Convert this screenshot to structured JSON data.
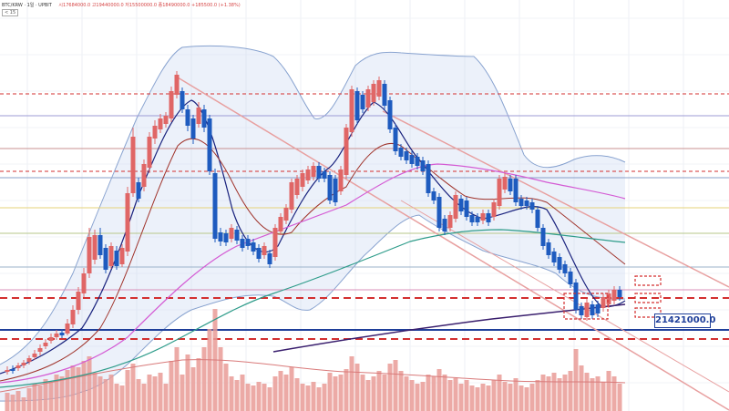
{
  "header": {
    "symbol": "BTC/KRW · 1일 · UPBIT",
    "ohlc": "시17684000.0  고19440000.0  저15500000.0  종18490000.0  +185500.0 (+1.38%)",
    "tag": "< 15"
  },
  "price_label": "21421000.0",
  "colors": {
    "up": "#e06666",
    "down": "#1e5bbf",
    "band": "#c9d8f0",
    "ma_fast": "#1a237e",
    "ma_mid": "#a0342c",
    "ma_pink": "#d45bd4",
    "ma_teal": "#2e9c8a",
    "ma_long": "#3a1f6e",
    "red_dash": "#d32f2f",
    "solid_blue": "#1f3f9a"
  },
  "chart_data": {
    "type": "candlestick",
    "candles": [
      [
        8,
        406,
        408,
        402,
        411
      ],
      [
        14,
        405,
        407,
        401,
        410
      ],
      [
        20,
        401,
        404,
        398,
        407
      ],
      [
        26,
        398,
        401,
        395,
        404
      ],
      [
        32,
        393,
        397,
        390,
        400
      ],
      [
        38,
        388,
        392,
        384,
        395
      ],
      [
        44,
        382,
        386,
        378,
        390
      ],
      [
        50,
        376,
        380,
        372,
        383
      ],
      [
        56,
        370,
        374,
        366,
        377
      ],
      [
        62,
        366,
        370,
        362,
        373
      ],
      [
        68,
        365,
        368,
        361,
        371
      ],
      [
        74,
        355,
        366,
        350,
        368
      ],
      [
        80,
        340,
        356,
        335,
        360
      ],
      [
        86,
        320,
        340,
        315,
        345
      ],
      [
        92,
        300,
        322,
        294,
        326
      ],
      [
        98,
        260,
        300,
        250,
        305
      ],
      [
        104,
        258,
        285,
        252,
        290
      ],
      [
        110,
        258,
        280,
        250,
        284
      ],
      [
        116,
        272,
        296,
        268,
        300
      ],
      [
        122,
        270,
        292,
        266,
        295
      ],
      [
        128,
        275,
        292,
        270,
        296
      ],
      [
        134,
        272,
        290,
        268,
        293
      ],
      [
        140,
        212,
        276,
        205,
        281
      ],
      [
        146,
        150,
        212,
        140,
        216
      ],
      [
        152,
        200,
        218,
        195,
        222
      ],
      [
        158,
        180,
        205,
        175,
        210
      ],
      [
        164,
        150,
        184,
        145,
        190
      ],
      [
        170,
        138,
        152,
        132,
        158
      ],
      [
        176,
        130,
        142,
        125,
        146
      ],
      [
        182,
        127,
        136,
        123,
        140
      ],
      [
        188,
        100,
        130,
        95,
        134
      ],
      [
        194,
        82,
        104,
        78,
        108
      ],
      [
        200,
        100,
        120,
        96,
        124
      ],
      [
        206,
        120,
        138,
        115,
        144
      ],
      [
        212,
        130,
        152,
        126,
        158
      ],
      [
        218,
        118,
        136,
        112,
        140
      ],
      [
        224,
        120,
        140,
        115,
        145
      ],
      [
        230,
        130,
        188,
        126,
        192
      ],
      [
        236,
        190,
        262,
        185,
        266
      ],
      [
        242,
        255,
        265,
        250,
        270
      ],
      [
        248,
        256,
        266,
        252,
        270
      ],
      [
        254,
        250,
        262,
        246,
        266
      ],
      [
        260,
        252,
        264,
        248,
        268
      ],
      [
        266,
        262,
        272,
        258,
        276
      ],
      [
        272,
        262,
        270,
        258,
        274
      ],
      [
        278,
        266,
        276,
        262,
        280
      ],
      [
        284,
        272,
        284,
        268,
        288
      ],
      [
        290,
        270,
        280,
        266,
        284
      ],
      [
        296,
        278,
        290,
        274,
        294
      ],
      [
        302,
        250,
        282,
        246,
        286
      ],
      [
        308,
        238,
        254,
        234,
        258
      ],
      [
        314,
        228,
        242,
        224,
        246
      ],
      [
        320,
        200,
        230,
        196,
        234
      ],
      [
        326,
        196,
        214,
        192,
        218
      ],
      [
        332,
        190,
        205,
        186,
        210
      ],
      [
        338,
        186,
        198,
        182,
        202
      ],
      [
        344,
        182,
        194,
        178,
        198
      ],
      [
        350,
        182,
        196,
        178,
        200
      ],
      [
        356,
        188,
        196,
        184,
        200
      ],
      [
        362,
        192,
        220,
        188,
        224
      ],
      [
        368,
        196,
        222,
        192,
        226
      ],
      [
        374,
        186,
        210,
        182,
        214
      ],
      [
        380,
        140,
        192,
        136,
        196
      ],
      [
        386,
        98,
        145,
        94,
        150
      ],
      [
        392,
        100,
        132,
        96,
        136
      ],
      [
        398,
        104,
        120,
        100,
        124
      ],
      [
        404,
        98,
        118,
        94,
        122
      ],
      [
        410,
        92,
        112,
        88,
        116
      ],
      [
        416,
        88,
        106,
        84,
        110
      ],
      [
        422,
        92,
        116,
        88,
        120
      ],
      [
        428,
        110,
        142,
        106,
        146
      ],
      [
        434,
        140,
        166,
        136,
        170
      ],
      [
        440,
        162,
        172,
        158,
        176
      ],
      [
        446,
        166,
        176,
        162,
        180
      ],
      [
        452,
        170,
        180,
        166,
        184
      ],
      [
        458,
        172,
        182,
        168,
        186
      ],
      [
        464,
        176,
        188,
        172,
        192
      ],
      [
        470,
        180,
        212,
        176,
        216
      ],
      [
        476,
        210,
        220,
        206,
        224
      ],
      [
        482,
        216,
        250,
        212,
        254
      ],
      [
        488,
        240,
        254,
        236,
        258
      ],
      [
        494,
        236,
        250,
        232,
        254
      ],
      [
        500,
        214,
        240,
        210,
        244
      ],
      [
        506,
        218,
        232,
        214,
        236
      ],
      [
        512,
        220,
        238,
        216,
        242
      ],
      [
        518,
        236,
        244,
        232,
        248
      ],
      [
        524,
        238,
        244,
        234,
        248
      ],
      [
        530,
        234,
        242,
        230,
        246
      ],
      [
        536,
        234,
        244,
        230,
        248
      ],
      [
        542,
        222,
        238,
        218,
        242
      ],
      [
        548,
        196,
        226,
        192,
        230
      ],
      [
        554,
        194,
        208,
        190,
        212
      ],
      [
        560,
        196,
        210,
        192,
        214
      ],
      [
        566,
        196,
        222,
        192,
        226
      ],
      [
        572,
        218,
        226,
        214,
        230
      ],
      [
        578,
        220,
        226,
        216,
        230
      ],
      [
        584,
        222,
        230,
        218,
        234
      ],
      [
        590,
        230,
        250,
        226,
        254
      ],
      [
        596,
        250,
        270,
        246,
        274
      ],
      [
        602,
        266,
        280,
        262,
        284
      ],
      [
        608,
        276,
        288,
        272,
        292
      ],
      [
        614,
        282,
        296,
        278,
        300
      ],
      [
        620,
        290,
        300,
        286,
        304
      ],
      [
        626,
        298,
        312,
        294,
        316
      ],
      [
        632,
        310,
        340,
        306,
        344
      ],
      [
        638,
        336,
        346,
        332,
        350
      ],
      [
        644,
        332,
        348,
        328,
        352
      ],
      [
        650,
        334,
        346,
        330,
        350
      ],
      [
        656,
        334,
        344,
        330,
        348
      ],
      [
        662,
        326,
        338,
        322,
        342
      ],
      [
        668,
        322,
        334,
        318,
        338
      ],
      [
        674,
        318,
        330,
        314,
        334
      ],
      [
        680,
        318,
        326,
        314,
        330
      ]
    ],
    "volume": [
      [
        8,
        20
      ],
      [
        14,
        18
      ],
      [
        20,
        22
      ],
      [
        26,
        15
      ],
      [
        32,
        25
      ],
      [
        38,
        30
      ],
      [
        44,
        28
      ],
      [
        50,
        35
      ],
      [
        56,
        32
      ],
      [
        62,
        40
      ],
      [
        68,
        38
      ],
      [
        74,
        45
      ],
      [
        80,
        50
      ],
      [
        86,
        48
      ],
      [
        92,
        55
      ],
      [
        98,
        60
      ],
      [
        104,
        42
      ],
      [
        110,
        38
      ],
      [
        116,
        35
      ],
      [
        122,
        40
      ],
      [
        128,
        30
      ],
      [
        134,
        28
      ],
      [
        140,
        45
      ],
      [
        146,
        52
      ],
      [
        152,
        35
      ],
      [
        158,
        30
      ],
      [
        164,
        40
      ],
      [
        170,
        38
      ],
      [
        176,
        42
      ],
      [
        182,
        30
      ],
      [
        188,
        55
      ],
      [
        194,
        70
      ],
      [
        200,
        40
      ],
      [
        206,
        62
      ],
      [
        212,
        48
      ],
      [
        218,
        58
      ],
      [
        224,
        70
      ],
      [
        230,
        90
      ],
      [
        236,
        112
      ],
      [
        242,
        70
      ],
      [
        248,
        52
      ],
      [
        254,
        38
      ],
      [
        260,
        34
      ],
      [
        266,
        40
      ],
      [
        272,
        30
      ],
      [
        278,
        28
      ],
      [
        284,
        32
      ],
      [
        290,
        30
      ],
      [
        296,
        26
      ],
      [
        302,
        38
      ],
      [
        308,
        44
      ],
      [
        314,
        40
      ],
      [
        320,
        48
      ],
      [
        326,
        36
      ],
      [
        332,
        30
      ],
      [
        338,
        28
      ],
      [
        344,
        32
      ],
      [
        350,
        26
      ],
      [
        356,
        30
      ],
      [
        362,
        42
      ],
      [
        368,
        38
      ],
      [
        374,
        40
      ],
      [
        380,
        46
      ],
      [
        386,
        60
      ],
      [
        392,
        52
      ],
      [
        398,
        40
      ],
      [
        404,
        34
      ],
      [
        410,
        38
      ],
      [
        416,
        44
      ],
      [
        422,
        40
      ],
      [
        428,
        52
      ],
      [
        434,
        56
      ],
      [
        440,
        44
      ],
      [
        446,
        38
      ],
      [
        452,
        34
      ],
      [
        458,
        30
      ],
      [
        464,
        32
      ],
      [
        470,
        40
      ],
      [
        476,
        38
      ],
      [
        482,
        46
      ],
      [
        488,
        40
      ],
      [
        494,
        34
      ],
      [
        500,
        36
      ],
      [
        506,
        30
      ],
      [
        512,
        34
      ],
      [
        518,
        28
      ],
      [
        524,
        26
      ],
      [
        530,
        30
      ],
      [
        536,
        28
      ],
      [
        542,
        34
      ],
      [
        548,
        40
      ],
      [
        554,
        32
      ],
      [
        560,
        30
      ],
      [
        566,
        36
      ],
      [
        572,
        28
      ],
      [
        578,
        26
      ],
      [
        584,
        30
      ],
      [
        590,
        34
      ],
      [
        596,
        40
      ],
      [
        602,
        38
      ],
      [
        608,
        42
      ],
      [
        614,
        36
      ],
      [
        620,
        40
      ],
      [
        626,
        44
      ],
      [
        632,
        68
      ],
      [
        638,
        50
      ],
      [
        644,
        42
      ],
      [
        650,
        36
      ],
      [
        656,
        38
      ],
      [
        662,
        32
      ],
      [
        668,
        44
      ],
      [
        674,
        38
      ],
      [
        680,
        30
      ]
    ]
  }
}
